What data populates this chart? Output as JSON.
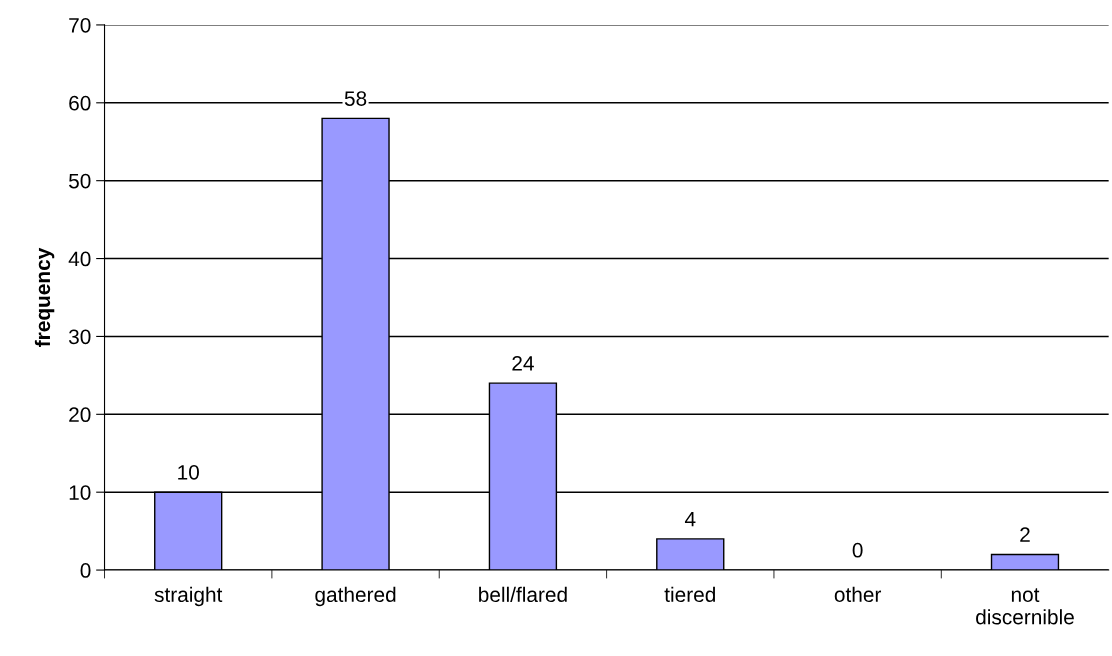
{
  "chart_data": {
    "type": "bar",
    "ylabel": "frequency",
    "categories": [
      "straight",
      "gathered",
      "bell/flared",
      "tiered",
      "other",
      "not\ndiscernible"
    ],
    "values": [
      10,
      58,
      24,
      4,
      0,
      2
    ],
    "color": "#9999ff",
    "ylim": [
      0,
      70
    ],
    "yticks": [
      0,
      10,
      20,
      30,
      40,
      50,
      60,
      70
    ],
    "grid": "y",
    "data_labels": true
  }
}
